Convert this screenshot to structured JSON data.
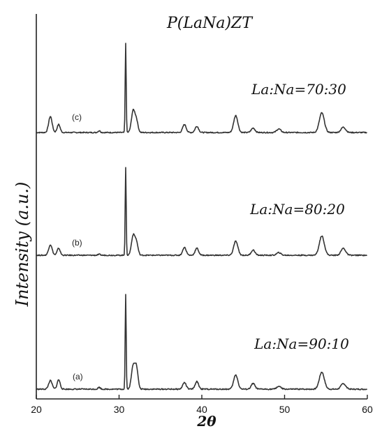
{
  "chart_data": {
    "type": "line",
    "title": "P(LaNa)ZT",
    "xlabel": "2θ",
    "ylabel": "Intensity (a.u.)",
    "xlim": [
      20,
      60
    ],
    "x_ticks": [
      "20",
      "30",
      "40",
      "50",
      "60"
    ],
    "grid": false,
    "peak_positions_2theta": [
      21.7,
      22.7,
      27.6,
      30.8,
      31.7,
      32.1,
      37.9,
      39.4,
      44.1,
      46.2,
      49.3,
      54.5,
      57.1
    ],
    "series": [
      {
        "name": "(c)",
        "annotation": "La:Na=70:30",
        "peak_heights": [
          18,
          9,
          2,
          100,
          24,
          13,
          9,
          7,
          19,
          5,
          4,
          22,
          6
        ]
      },
      {
        "name": "(b)",
        "annotation": "La:Na=80:20",
        "peak_heights": [
          12,
          8,
          1,
          100,
          22,
          14,
          9,
          8,
          16,
          6,
          3,
          22,
          8
        ]
      },
      {
        "name": "(a)",
        "annotation": "La:Na=90:10",
        "peak_heights": [
          9,
          10,
          2,
          100,
          24,
          22,
          7,
          8,
          15,
          6,
          3,
          18,
          6
        ]
      }
    ]
  }
}
